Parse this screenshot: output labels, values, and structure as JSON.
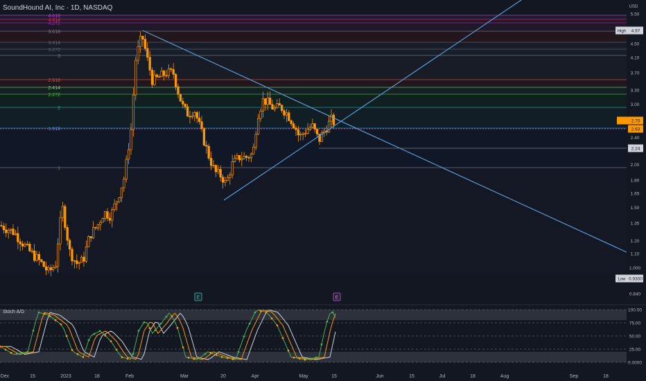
{
  "header": {
    "title": "SoundHound AI, Inc · 1D, NASDAQ"
  },
  "price_axis": {
    "currency": "USD"
  },
  "chart_data": {
    "type": "candlestick",
    "symbol": "SoundHound AI, Inc",
    "interval": "1D",
    "exchange": "NASDAQ",
    "y_scale": "log",
    "ylim": [
      0.84,
      5.6
    ],
    "y_ticks": [
      5.5,
      4.5,
      4.1,
      3.7,
      3.3,
      3.0,
      2.4,
      2.0,
      1.8,
      1.65,
      1.5,
      1.35,
      1.2,
      1.1,
      1.0,
      0.84
    ],
    "x_ticks": [
      "Dec",
      "15",
      "2023",
      "18",
      "Feb",
      "Mar",
      "20",
      "Apr",
      "May",
      "15",
      "Jun",
      "15",
      "Jul",
      "18",
      "Aug",
      "Sep",
      "18"
    ],
    "markers": {
      "high": {
        "label": "High",
        "value": "4.97"
      },
      "low": {
        "label": "Low",
        "value": "0.9300"
      },
      "last_price": {
        "label": "",
        "value": "2.70"
      },
      "current": {
        "value": "2.63"
      },
      "level": {
        "value": "2.24"
      }
    },
    "fib_levels": [
      {
        "label": "4.618",
        "color": "#ab47bc"
      },
      {
        "label": "4.414",
        "color": "#e91e63"
      },
      {
        "label": "4.272",
        "color": "#9c27b0"
      },
      {
        "label": "3.618",
        "color": "#787b86"
      },
      {
        "label": "3.414",
        "color": "#5d6570"
      },
      {
        "label": "3.272",
        "color": "#5d6570"
      },
      {
        "label": "3",
        "color": "#787b86"
      },
      {
        "label": "2.618",
        "color": "#f44336"
      },
      {
        "label": "2.414",
        "color": "#81c784"
      },
      {
        "label": "2.272",
        "color": "#4caf50"
      },
      {
        "label": "2",
        "color": "#26a69a"
      },
      {
        "label": "1.618",
        "color": "#2196f3"
      },
      {
        "label": "1",
        "color": "#787b86"
      }
    ],
    "candle_color": "#ff9800",
    "trendline_color": "#5b9cd6",
    "events": [
      "E",
      "E"
    ],
    "oscillator": {
      "name": "Stoch %K %D",
      "label": "Stoch A/D",
      "ylim": [
        0,
        100
      ],
      "ticks": [
        "100.00",
        "75.00",
        "50.00",
        "25.00",
        "0.0000"
      ],
      "bands": [
        20,
        80
      ],
      "k_color": "#4caf50",
      "d_color": "#ff9800",
      "signal_color": "#d1d4dc"
    }
  }
}
